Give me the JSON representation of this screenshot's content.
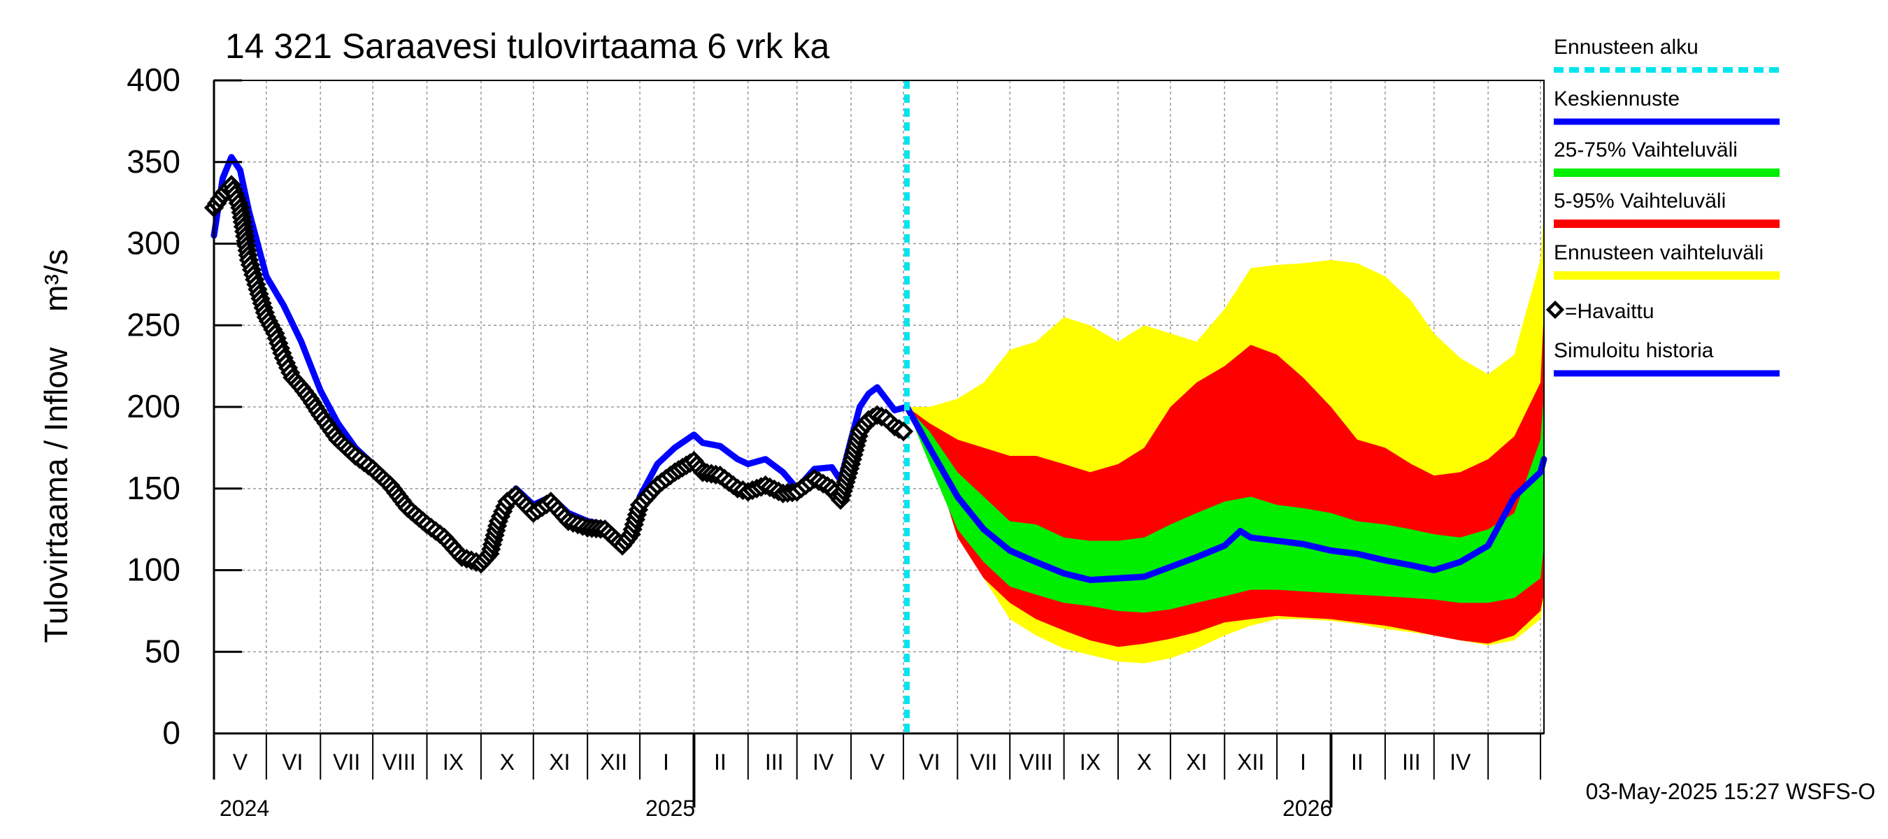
{
  "chart_data": {
    "type": "area",
    "title": "14 321 Saraavesi tulovirtaama 6 vrk ka",
    "ylabel": "Tulovirtaama / Inflow    m³/s",
    "ylim": [
      0,
      400
    ],
    "yticks": [
      0,
      50,
      100,
      150,
      200,
      250,
      300,
      350,
      400
    ],
    "grid": true,
    "legend_position": "right",
    "x_range": [
      "2024-04-01",
      "2026-05-03"
    ],
    "forecast_start": "2025-05-03",
    "timestamp": "03-May-2025 15:27 WSFS-O",
    "month_labels": [
      {
        "label": "V",
        "date": "2024-04-16"
      },
      {
        "label": "VI",
        "date": "2024-05-16"
      },
      {
        "label": "VII",
        "date": "2024-06-16"
      },
      {
        "label": "VIII",
        "date": "2024-07-16"
      },
      {
        "label": "IX",
        "date": "2024-08-16"
      },
      {
        "label": "X",
        "date": "2024-09-16"
      },
      {
        "label": "XI",
        "date": "2024-10-16"
      },
      {
        "label": "XII",
        "date": "2024-11-16"
      },
      {
        "label": "I",
        "date": "2024-12-16"
      },
      {
        "label": "II",
        "date": "2025-01-16"
      },
      {
        "label": "III",
        "date": "2025-02-16"
      },
      {
        "label": "IV",
        "date": "2025-03-16"
      },
      {
        "label": "V",
        "date": "2025-04-16"
      },
      {
        "label": "VI",
        "date": "2025-05-16"
      },
      {
        "label": "VII",
        "date": "2025-06-16"
      },
      {
        "label": "VIII",
        "date": "2025-07-16"
      },
      {
        "label": "IX",
        "date": "2025-08-16"
      },
      {
        "label": "X",
        "date": "2025-09-16"
      },
      {
        "label": "XI",
        "date": "2025-10-16"
      },
      {
        "label": "XII",
        "date": "2025-11-16"
      },
      {
        "label": "I",
        "date": "2025-12-16"
      },
      {
        "label": "II",
        "date": "2026-01-16"
      },
      {
        "label": "III",
        "date": "2026-02-16"
      },
      {
        "label": "IV",
        "date": "2026-03-16"
      }
    ],
    "year_labels": [
      {
        "label": "2024",
        "date": "2024-04-01"
      },
      {
        "label": "2025",
        "date": "2024-12-01"
      },
      {
        "label": "2026",
        "date": "2025-12-01"
      }
    ],
    "legend": [
      {
        "label": "Ennusteen alku",
        "color": "#00e5ee",
        "style": "dashed"
      },
      {
        "label": "Keskiennuste",
        "color": "#0000ff",
        "style": "line"
      },
      {
        "label": "25-75% Vaihteluväli",
        "color": "#00ee00",
        "style": "band"
      },
      {
        "label": "5-95% Vaihteluväli",
        "color": "#ff0000",
        "style": "band"
      },
      {
        "label": "Ennusteen vaihteluväli",
        "color": "#ffff00",
        "style": "band"
      },
      {
        "label": "=Havaittu",
        "color": "#000000",
        "style": "marker"
      },
      {
        "label": "Simuloitu historia",
        "color": "#0000ff",
        "style": "line"
      }
    ],
    "series": [
      {
        "name": "Simuloitu historia",
        "color": "#0000ff",
        "points": [
          [
            "2024-04-01",
            305
          ],
          [
            "2024-04-06",
            340
          ],
          [
            "2024-04-11",
            353
          ],
          [
            "2024-04-16",
            345
          ],
          [
            "2024-04-21",
            320
          ],
          [
            "2024-05-01",
            280
          ],
          [
            "2024-05-11",
            262
          ],
          [
            "2024-05-21",
            240
          ],
          [
            "2024-06-01",
            210
          ],
          [
            "2024-06-11",
            190
          ],
          [
            "2024-06-21",
            175
          ],
          [
            "2024-07-01",
            165
          ],
          [
            "2024-07-11",
            155
          ],
          [
            "2024-07-21",
            140
          ],
          [
            "2024-08-01",
            130
          ],
          [
            "2024-08-11",
            120
          ],
          [
            "2024-08-21",
            110
          ],
          [
            "2024-09-01",
            105
          ],
          [
            "2024-09-06",
            108
          ],
          [
            "2024-09-11",
            130
          ],
          [
            "2024-09-21",
            150
          ],
          [
            "2024-10-01",
            140
          ],
          [
            "2024-10-11",
            145
          ],
          [
            "2024-10-21",
            135
          ],
          [
            "2024-11-01",
            130
          ],
          [
            "2024-11-11",
            128
          ],
          [
            "2024-11-21",
            118
          ],
          [
            "2024-11-26",
            128
          ],
          [
            "2024-12-01",
            145
          ],
          [
            "2024-12-11",
            165
          ],
          [
            "2024-12-21",
            175
          ],
          [
            "2025-01-01",
            183
          ],
          [
            "2025-01-06",
            178
          ],
          [
            "2025-01-16",
            176
          ],
          [
            "2025-01-26",
            168
          ],
          [
            "2025-02-01",
            165
          ],
          [
            "2025-02-11",
            168
          ],
          [
            "2025-02-21",
            160
          ],
          [
            "2025-03-01",
            150
          ],
          [
            "2025-03-11",
            162
          ],
          [
            "2025-03-21",
            163
          ],
          [
            "2025-03-26",
            155
          ],
          [
            "2025-04-01",
            180
          ],
          [
            "2025-04-06",
            200
          ],
          [
            "2025-04-11",
            208
          ],
          [
            "2025-04-16",
            212
          ],
          [
            "2025-04-21",
            205
          ],
          [
            "2025-04-26",
            198
          ],
          [
            "2025-05-03",
            200
          ]
        ]
      },
      {
        "name": "=Havaittu",
        "color": "#000000",
        "points": [
          [
            "2024-04-01",
            322
          ],
          [
            "2024-04-06",
            330
          ],
          [
            "2024-04-11",
            336
          ],
          [
            "2024-04-16",
            322
          ],
          [
            "2024-04-21",
            290
          ],
          [
            "2024-04-26",
            272
          ],
          [
            "2024-05-01",
            255
          ],
          [
            "2024-05-06",
            245
          ],
          [
            "2024-05-11",
            230
          ],
          [
            "2024-05-16",
            218
          ],
          [
            "2024-05-21",
            212
          ],
          [
            "2024-05-26",
            205
          ],
          [
            "2024-06-01",
            195
          ],
          [
            "2024-06-11",
            180
          ],
          [
            "2024-06-21",
            170
          ],
          [
            "2024-07-01",
            162
          ],
          [
            "2024-07-11",
            152
          ],
          [
            "2024-07-21",
            138
          ],
          [
            "2024-08-01",
            128
          ],
          [
            "2024-08-11",
            120
          ],
          [
            "2024-08-21",
            108
          ],
          [
            "2024-09-01",
            104
          ],
          [
            "2024-09-06",
            110
          ],
          [
            "2024-09-11",
            130
          ],
          [
            "2024-09-16",
            142
          ],
          [
            "2024-09-21",
            146
          ],
          [
            "2024-10-01",
            135
          ],
          [
            "2024-10-11",
            142
          ],
          [
            "2024-10-21",
            130
          ],
          [
            "2024-11-01",
            126
          ],
          [
            "2024-11-11",
            125
          ],
          [
            "2024-11-21",
            115
          ],
          [
            "2024-11-26",
            122
          ],
          [
            "2024-12-01",
            140
          ],
          [
            "2024-12-11",
            152
          ],
          [
            "2024-12-21",
            160
          ],
          [
            "2025-01-01",
            167
          ],
          [
            "2025-01-06",
            160
          ],
          [
            "2025-01-16",
            158
          ],
          [
            "2025-01-26",
            150
          ],
          [
            "2025-02-01",
            148
          ],
          [
            "2025-02-11",
            152
          ],
          [
            "2025-02-21",
            147
          ],
          [
            "2025-03-01",
            148
          ],
          [
            "2025-03-11",
            156
          ],
          [
            "2025-03-21",
            150
          ],
          [
            "2025-03-26",
            143
          ],
          [
            "2025-04-01",
            165
          ],
          [
            "2025-04-06",
            185
          ],
          [
            "2025-04-11",
            192
          ],
          [
            "2025-04-16",
            195
          ],
          [
            "2025-04-21",
            193
          ],
          [
            "2025-04-26",
            188
          ],
          [
            "2025-05-01",
            185
          ]
        ]
      },
      {
        "name": "Keskiennuste",
        "color": "#0000ff",
        "points": [
          [
            "2025-05-03",
            200
          ],
          [
            "2025-05-16",
            175
          ],
          [
            "2025-06-01",
            145
          ],
          [
            "2025-06-16",
            125
          ],
          [
            "2025-07-01",
            112
          ],
          [
            "2025-07-16",
            105
          ],
          [
            "2025-08-01",
            98
          ],
          [
            "2025-08-16",
            94
          ],
          [
            "2025-09-01",
            95
          ],
          [
            "2025-09-16",
            96
          ],
          [
            "2025-10-01",
            102
          ],
          [
            "2025-10-16",
            108
          ],
          [
            "2025-11-01",
            115
          ],
          [
            "2025-11-10",
            124
          ],
          [
            "2025-11-16",
            120
          ],
          [
            "2025-12-01",
            118
          ],
          [
            "2025-12-16",
            116
          ],
          [
            "2026-01-01",
            112
          ],
          [
            "2026-01-16",
            110
          ],
          [
            "2026-02-01",
            106
          ],
          [
            "2026-02-16",
            103
          ],
          [
            "2026-03-01",
            100
          ],
          [
            "2026-03-16",
            105
          ],
          [
            "2026-04-01",
            115
          ],
          [
            "2026-04-16",
            145
          ],
          [
            "2026-05-01",
            160
          ],
          [
            "2026-05-03",
            168
          ]
        ]
      },
      {
        "name": "Ennusteen vaihteluväli",
        "color": "#ffff00",
        "x": [
          "2025-05-03",
          "2025-05-16",
          "2025-06-01",
          "2025-06-16",
          "2025-07-01",
          "2025-07-16",
          "2025-08-01",
          "2025-08-16",
          "2025-09-01",
          "2025-09-16",
          "2025-10-01",
          "2025-10-16",
          "2025-11-01",
          "2025-11-16",
          "2025-12-01",
          "2025-12-16",
          "2026-01-01",
          "2026-01-16",
          "2026-02-01",
          "2026-02-16",
          "2026-03-01",
          "2026-03-16",
          "2026-04-01",
          "2026-04-16",
          "2026-05-01",
          "2026-05-03"
        ],
        "low": [
          198,
          175,
          130,
          95,
          70,
          60,
          52,
          48,
          44,
          43,
          46,
          52,
          60,
          66,
          70,
          70,
          69,
          67,
          64,
          62,
          60,
          57,
          54,
          57,
          70,
          84
        ],
        "high": [
          200,
          200,
          205,
          215,
          235,
          240,
          255,
          250,
          240,
          250,
          245,
          240,
          260,
          285,
          287,
          288,
          290,
          288,
          280,
          265,
          245,
          230,
          220,
          232,
          290,
          320
        ]
      },
      {
        "name": "5-95% Vaihteluväli",
        "color": "#ff0000",
        "x": [
          "2025-05-03",
          "2025-05-16",
          "2025-06-01",
          "2025-06-16",
          "2025-07-01",
          "2025-07-16",
          "2025-08-01",
          "2025-08-16",
          "2025-09-01",
          "2025-09-16",
          "2025-10-01",
          "2025-10-16",
          "2025-11-01",
          "2025-11-16",
          "2025-12-01",
          "2025-12-16",
          "2026-01-01",
          "2026-01-16",
          "2026-02-01",
          "2026-02-16",
          "2026-03-01",
          "2026-03-16",
          "2026-04-01",
          "2026-04-16",
          "2026-05-01",
          "2026-05-03"
        ],
        "low": [
          198,
          175,
          120,
          95,
          80,
          70,
          63,
          57,
          53,
          55,
          58,
          62,
          68,
          70,
          72,
          71,
          70,
          68,
          66,
          63,
          60,
          57,
          55,
          60,
          75,
          86
        ],
        "high": [
          200,
          190,
          180,
          175,
          170,
          170,
          165,
          160,
          165,
          175,
          200,
          215,
          225,
          238,
          232,
          218,
          200,
          180,
          175,
          165,
          158,
          160,
          168,
          182,
          215,
          260
        ]
      },
      {
        "name": "25-75% Vaihteluväli",
        "color": "#00ee00",
        "x": [
          "2025-05-03",
          "2025-05-16",
          "2025-06-01",
          "2025-06-16",
          "2025-07-01",
          "2025-07-16",
          "2025-08-01",
          "2025-08-16",
          "2025-09-01",
          "2025-09-16",
          "2025-10-01",
          "2025-10-16",
          "2025-11-01",
          "2025-11-16",
          "2025-12-01",
          "2025-12-16",
          "2026-01-01",
          "2026-01-16",
          "2026-02-01",
          "2026-02-16",
          "2026-03-01",
          "2026-03-16",
          "2026-04-01",
          "2026-04-16",
          "2026-05-01",
          "2026-05-03"
        ],
        "low": [
          199,
          165,
          125,
          105,
          90,
          85,
          80,
          78,
          75,
          74,
          76,
          80,
          84,
          88,
          88,
          87,
          86,
          85,
          84,
          83,
          82,
          80,
          80,
          83,
          95,
          115
        ],
        "high": [
          200,
          185,
          160,
          145,
          130,
          128,
          120,
          118,
          118,
          120,
          128,
          135,
          142,
          145,
          140,
          138,
          135,
          130,
          128,
          125,
          122,
          120,
          125,
          135,
          180,
          210
        ]
      }
    ]
  }
}
